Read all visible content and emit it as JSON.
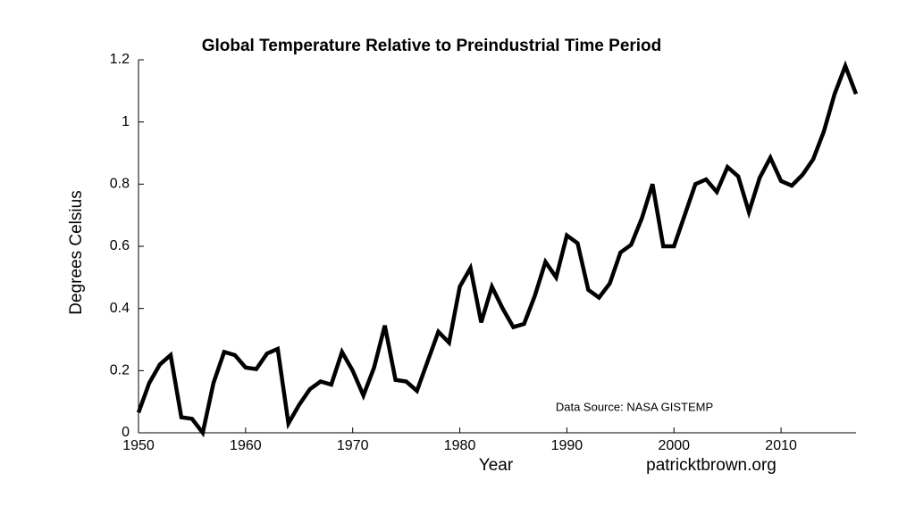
{
  "chart_data": {
    "type": "line",
    "title": "Global Temperature Relative to Preindustrial Time Period",
    "x_label": "Year",
    "y_label": "Degrees Celsius",
    "annotations": [
      "Data Source: NASA GISTEMP",
      "patricktbrown.org"
    ],
    "annotation_color": "#4a6fb5",
    "x": [
      1950,
      1951,
      1952,
      1953,
      1954,
      1955,
      1956,
      1957,
      1958,
      1959,
      1960,
      1961,
      1962,
      1963,
      1964,
      1965,
      1966,
      1967,
      1968,
      1969,
      1970,
      1971,
      1972,
      1973,
      1974,
      1975,
      1976,
      1977,
      1978,
      1979,
      1980,
      1981,
      1982,
      1983,
      1984,
      1985,
      1986,
      1987,
      1988,
      1989,
      1990,
      1991,
      1992,
      1993,
      1994,
      1995,
      1996,
      1997,
      1998,
      1999,
      2000,
      2001,
      2002,
      2003,
      2004,
      2005,
      2006,
      2007,
      2008,
      2009,
      2010,
      2011,
      2012,
      2013,
      2014,
      2015,
      2016,
      2017
    ],
    "series": [
      {
        "name": "Temperature",
        "color": "#000000",
        "values": [
          0.065,
          0.16,
          0.22,
          0.25,
          0.05,
          0.045,
          0.0,
          0.16,
          0.26,
          0.25,
          0.21,
          0.205,
          0.255,
          0.27,
          0.03,
          0.09,
          0.14,
          0.165,
          0.155,
          0.26,
          0.2,
          0.12,
          0.21,
          0.345,
          0.17,
          0.165,
          0.135,
          0.23,
          0.325,
          0.29,
          0.47,
          0.53,
          0.355,
          0.47,
          0.4,
          0.34,
          0.35,
          0.44,
          0.55,
          0.5,
          0.635,
          0.61,
          0.46,
          0.435,
          0.48,
          0.58,
          0.605,
          0.69,
          0.8,
          0.6,
          0.6,
          0.7,
          0.8,
          0.815,
          0.775,
          0.855,
          0.825,
          0.71,
          0.82,
          0.885,
          0.81,
          0.795,
          0.83,
          0.88,
          0.97,
          1.09,
          1.18,
          1.09
        ]
      }
    ],
    "xlim": [
      1950,
      2017
    ],
    "ylim": [
      0,
      1.2
    ],
    "xticks": [
      1950,
      1960,
      1970,
      1980,
      1990,
      2000,
      2010
    ],
    "yticks": [
      0,
      0.2,
      0.4,
      0.6,
      0.8,
      1,
      1.2
    ],
    "grid": false
  }
}
